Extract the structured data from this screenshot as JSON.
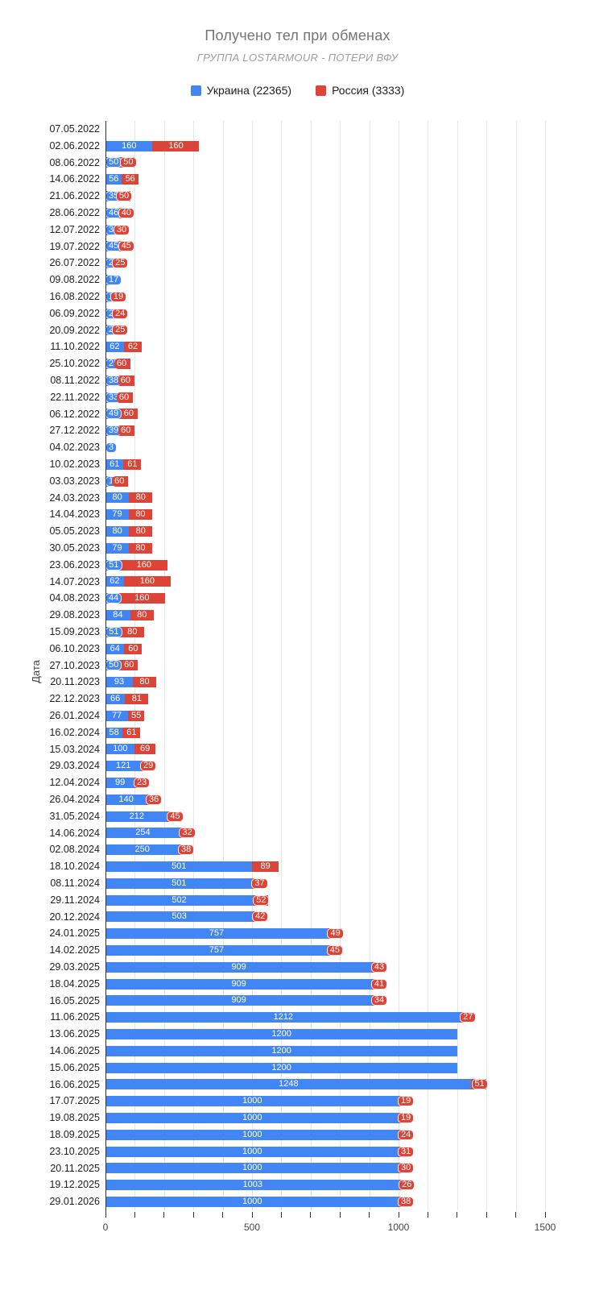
{
  "header": {
    "title": "Получено тел при обменах",
    "subtitle": "ГРУППА LOSTARMOUR - ПОТЕРИ ВФУ"
  },
  "legend": [
    {
      "label": "Украина (22365)",
      "color": "#4285F4"
    },
    {
      "label": "Россия (3333)",
      "color": "#DB4437"
    }
  ],
  "chart_data": {
    "type": "bar",
    "orientation": "horizontal",
    "stacked": true,
    "title": "Получено тел при обменах",
    "subtitle": "ГРУППА LOSTARMOUR - ПОТЕРИ ВФУ",
    "xlabel": "",
    "ylabel": "Дата",
    "xlim": [
      0,
      1500
    ],
    "x_ticks": [
      0,
      500,
      1000,
      1500
    ],
    "grid_step": 100,
    "grid": true,
    "legend_position": "top",
    "categories": [
      "07.05.2022",
      "02.06.2022",
      "08.06.2022",
      "14.06.2022",
      "21.06.2022",
      "28.06.2022",
      "12.07.2022",
      "19.07.2022",
      "26.07.2022",
      "09.08.2022",
      "16.08.2022",
      "06.09.2022",
      "20.09.2022",
      "11.10.2022",
      "25.10.2022",
      "08.11.2022",
      "22.11.2022",
      "06.12.2022",
      "27.12.2022",
      "04.02.2023",
      "10.02.2023",
      "03.03.2023",
      "24.03.2023",
      "14.04.2023",
      "05.05.2023",
      "30.05.2023",
      "23.06.2023",
      "14.07.2023",
      "04.08.2023",
      "29.08.2023",
      "15.09.2023",
      "06.10.2023",
      "27.10.2023",
      "20.11.2023",
      "22.12.2023",
      "26.01.2024",
      "16.02.2024",
      "15.03.2024",
      "29.03.2024",
      "12.04.2024",
      "26.04.2024",
      "31.05.2024",
      "14.06.2024",
      "02.08.2024",
      "18.10.2024",
      "08.11.2024",
      "29.11.2024",
      "20.12.2024",
      "24.01.2025",
      "14.02.2025",
      "29.03.2025",
      "18.04.2025",
      "16.05.2025",
      "11.06.2025",
      "13.06.2025",
      "14.06.2025",
      "15.06.2025",
      "16.06.2025",
      "17.07.2025",
      "19.08.2025",
      "18.09.2025",
      "23.10.2025",
      "20.11.2025",
      "19.12.2025",
      "29.01.2026"
    ],
    "series": [
      {
        "name": "Украина (22365)",
        "color": "#4285F4",
        "total": 22365,
        "values": [
          0,
          160,
          50,
          56,
          35,
          46,
          30,
          45,
          25,
          17,
          19,
          25,
          25,
          62,
          25,
          38,
          33,
          49,
          39,
          3,
          61,
          17,
          80,
          79,
          80,
          79,
          51,
          62,
          44,
          84,
          51,
          64,
          50,
          93,
          66,
          77,
          58,
          100,
          121,
          99,
          140,
          212,
          254,
          250,
          501,
          501,
          502,
          503,
          757,
          757,
          909,
          909,
          909,
          1212,
          1200,
          1200,
          1200,
          1248,
          1000,
          1000,
          1000,
          1000,
          1000,
          1003,
          1000
        ]
      },
      {
        "name": "Россия (3333)",
        "color": "#DB4437",
        "total": 3333,
        "values": [
          0,
          160,
          50,
          56,
          50,
          40,
          30,
          45,
          25,
          0,
          19,
          24,
          25,
          62,
          60,
          60,
          60,
          60,
          60,
          0,
          61,
          60,
          80,
          80,
          80,
          80,
          160,
          160,
          160,
          80,
          80,
          60,
          60,
          80,
          81,
          55,
          61,
          69,
          29,
          23,
          36,
          45,
          32,
          38,
          89,
          37,
          52,
          42,
          49,
          45,
          43,
          41,
          34,
          27,
          0,
          0,
          0,
          51,
          19,
          19,
          24,
          31,
          30,
          26,
          38
        ]
      }
    ]
  }
}
